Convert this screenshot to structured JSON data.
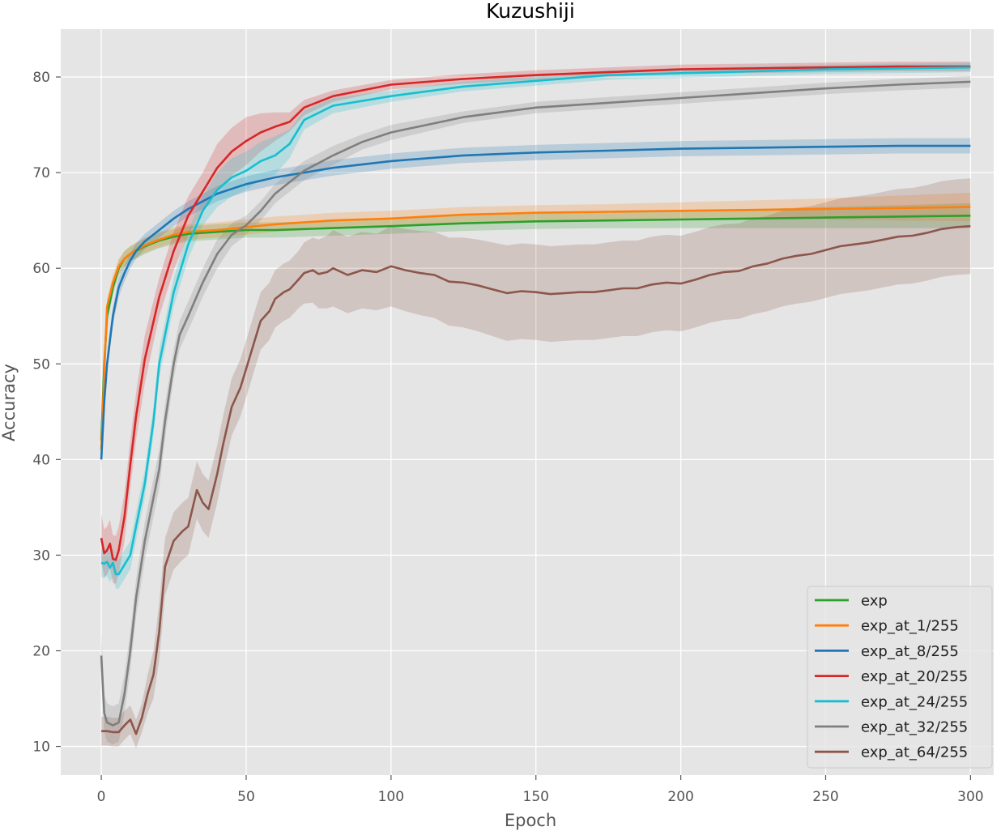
{
  "chart_data": {
    "type": "line",
    "title": "Kuzushiji",
    "xlabel": "Epoch",
    "ylabel": "Accuracy",
    "xlim": [
      -14,
      308
    ],
    "ylim": [
      7,
      85
    ],
    "xticks": [
      0,
      50,
      100,
      150,
      200,
      250,
      300
    ],
    "yticks": [
      10,
      20,
      30,
      40,
      50,
      60,
      70,
      80
    ],
    "grid": true,
    "legend_position": "lower-right",
    "bands": "shaded band around each line",
    "series": [
      {
        "name": "exp",
        "color": "#2ca02c",
        "x": [
          0,
          1,
          2,
          4,
          6,
          8,
          10,
          12,
          15,
          20,
          25,
          30,
          40,
          50,
          60,
          70,
          80,
          100,
          125,
          150,
          175,
          200,
          225,
          250,
          275,
          300
        ],
        "values": [
          42,
          50,
          55,
          58,
          60,
          61,
          61.5,
          61.8,
          62.3,
          62.9,
          63.3,
          63.6,
          63.8,
          64,
          64,
          64.1,
          64.2,
          64.4,
          64.7,
          64.9,
          65,
          65.1,
          65.2,
          65.3,
          65.4,
          65.5
        ],
        "band": [
          0.8,
          0.8,
          0.8,
          0.8,
          0.8,
          0.8,
          0.8,
          0.8,
          0.8,
          0.8,
          0.8,
          0.8,
          0.8,
          0.8,
          0.8,
          0.8,
          0.8,
          0.8,
          0.8,
          0.8,
          0.8,
          0.9,
          1,
          1.1,
          1.2,
          1.3
        ]
      },
      {
        "name": "exp_at_1/255",
        "color": "#ff7f0e",
        "x": [
          0,
          1,
          2,
          4,
          6,
          8,
          10,
          12,
          15,
          20,
          25,
          30,
          40,
          50,
          60,
          70,
          80,
          100,
          125,
          150,
          175,
          200,
          225,
          250,
          275,
          300
        ],
        "values": [
          41,
          49,
          56,
          58.5,
          60.2,
          61,
          61.5,
          61.9,
          62.4,
          63,
          63.5,
          63.8,
          64,
          64.3,
          64.6,
          64.8,
          65,
          65.2,
          65.6,
          65.8,
          65.9,
          66,
          66.1,
          66.2,
          66.3,
          66.4
        ],
        "band": [
          0.8,
          0.8,
          0.8,
          0.8,
          0.8,
          0.8,
          0.8,
          0.8,
          0.8,
          0.8,
          0.8,
          0.8,
          0.8,
          0.8,
          0.8,
          0.8,
          0.8,
          0.8,
          0.8,
          0.8,
          0.8,
          0.9,
          1,
          1.1,
          1.3,
          1.5
        ]
      },
      {
        "name": "exp_at_8/255",
        "color": "#1f77b4",
        "x": [
          0,
          1,
          2,
          4,
          6,
          8,
          10,
          12,
          15,
          20,
          25,
          30,
          40,
          50,
          60,
          70,
          80,
          100,
          125,
          150,
          175,
          200,
          225,
          250,
          275,
          300
        ],
        "values": [
          40,
          46,
          50,
          55,
          58,
          59.5,
          60.8,
          61.8,
          62.8,
          64,
          65.2,
          66.2,
          67.8,
          68.8,
          69.5,
          70,
          70.5,
          71.2,
          71.8,
          72.1,
          72.3,
          72.5,
          72.6,
          72.7,
          72.8,
          72.8
        ],
        "band": [
          1.2,
          1,
          1,
          1,
          1,
          0.9,
          0.8,
          0.8,
          0.8,
          0.8,
          0.8,
          0.8,
          0.8,
          0.8,
          0.8,
          0.8,
          0.8,
          0.8,
          0.8,
          0.8,
          0.8,
          0.8,
          0.8,
          0.8,
          0.8,
          0.8
        ]
      },
      {
        "name": "exp_at_20/255",
        "color": "#d62728",
        "x": [
          0,
          1,
          2,
          3,
          4,
          5,
          6,
          8,
          10,
          12,
          15,
          20,
          25,
          30,
          35,
          40,
          45,
          50,
          55,
          60,
          65,
          70,
          80,
          100,
          125,
          150,
          175,
          200,
          225,
          250,
          275,
          300
        ],
        "values": [
          31.8,
          30.2,
          30.5,
          31.2,
          29.6,
          29.5,
          30.5,
          34,
          39.5,
          44.5,
          50.5,
          57,
          61.8,
          65.5,
          68,
          70.5,
          72.2,
          73.3,
          74.2,
          74.8,
          75.3,
          76.8,
          78,
          79.2,
          79.8,
          80.2,
          80.5,
          80.8,
          80.9,
          81,
          81.1,
          81.1
        ],
        "band": [
          2.5,
          2.5,
          2.5,
          2.5,
          2.5,
          2.5,
          2.5,
          2.5,
          2.5,
          2.5,
          2.5,
          2,
          2,
          2,
          2,
          2.5,
          2.5,
          2.5,
          2,
          1.5,
          1,
          0.8,
          0.6,
          0.5,
          0.5,
          0.5,
          0.5,
          0.5,
          0.5,
          0.5,
          0.5,
          0.5
        ]
      },
      {
        "name": "exp_at_24/255",
        "color": "#17becf",
        "x": [
          0,
          1,
          2,
          3,
          4,
          5,
          6,
          8,
          10,
          12,
          15,
          18,
          20,
          25,
          30,
          35,
          40,
          45,
          50,
          55,
          60,
          65,
          70,
          80,
          100,
          125,
          150,
          175,
          200,
          225,
          250,
          275,
          300
        ],
        "values": [
          29.2,
          29.1,
          29.3,
          28.7,
          29.2,
          28,
          28,
          29,
          30,
          33,
          37.5,
          44,
          50,
          57.5,
          62.5,
          66,
          68.2,
          69.5,
          70.2,
          71.2,
          71.8,
          73,
          75.5,
          77,
          78,
          79,
          79.6,
          80.2,
          80.4,
          80.6,
          80.8,
          80.9,
          81
        ],
        "band": [
          1.5,
          1.5,
          1.5,
          1.5,
          1.5,
          1.5,
          1.5,
          1.5,
          1.5,
          1.5,
          1.5,
          1.5,
          1.5,
          1.5,
          1.5,
          1.5,
          1.8,
          2,
          2,
          2,
          2,
          1.5,
          1,
          0.8,
          0.6,
          0.5,
          0.5,
          0.5,
          0.5,
          0.5,
          0.5,
          0.5,
          0.5
        ]
      },
      {
        "name": "exp_at_32/255",
        "color": "#7f7f7f",
        "x": [
          0,
          1,
          2,
          4,
          6,
          8,
          10,
          12,
          15,
          18,
          20,
          22,
          25,
          27,
          30,
          35,
          40,
          45,
          50,
          55,
          60,
          65,
          70,
          80,
          90,
          100,
          125,
          150,
          175,
          200,
          225,
          250,
          275,
          300
        ],
        "values": [
          19.5,
          13.5,
          12.5,
          12.2,
          12.5,
          15.5,
          20,
          25.5,
          31.5,
          36,
          39,
          44,
          50,
          53,
          55,
          58.5,
          61.5,
          63.5,
          64.5,
          66,
          67.8,
          69,
          70.2,
          71.8,
          73.2,
          74.2,
          75.8,
          76.8,
          77.3,
          77.8,
          78.3,
          78.8,
          79.2,
          79.5
        ],
        "band": [
          2.5,
          2,
          2,
          2,
          2,
          2,
          2,
          2,
          2,
          2,
          2,
          1.8,
          1.5,
          1.5,
          1.5,
          1.5,
          1.5,
          1.2,
          1,
          1,
          1,
          1,
          1,
          1,
          0.8,
          0.8,
          0.6,
          0.6,
          0.6,
          0.6,
          0.6,
          0.6,
          0.6,
          0.6
        ]
      },
      {
        "name": "exp_at_64/255",
        "color": "#8c564b",
        "x": [
          0,
          2,
          4,
          6,
          8,
          10,
          12,
          14,
          16,
          18,
          20,
          22,
          25,
          28,
          30,
          33,
          35,
          37,
          40,
          42,
          45,
          48,
          50,
          53,
          55,
          58,
          60,
          63,
          65,
          68,
          70,
          73,
          75,
          78,
          80,
          85,
          90,
          95,
          100,
          105,
          110,
          115,
          120,
          125,
          130,
          135,
          140,
          145,
          150,
          155,
          160,
          165,
          170,
          175,
          180,
          185,
          190,
          195,
          200,
          205,
          210,
          215,
          220,
          225,
          230,
          235,
          240,
          245,
          250,
          255,
          260,
          265,
          270,
          275,
          280,
          285,
          290,
          295,
          300
        ],
        "values": [
          11.6,
          11.6,
          11.5,
          11.5,
          12.2,
          12.8,
          11.3,
          13,
          15.5,
          17.5,
          22,
          28.8,
          31.5,
          32.5,
          33,
          36.8,
          35.5,
          34.8,
          38.5,
          41.5,
          45.5,
          47.5,
          49.5,
          52.5,
          54.5,
          55.5,
          56.8,
          57.5,
          57.8,
          58.8,
          59.5,
          59.8,
          59.4,
          59.6,
          60,
          59.3,
          59.8,
          59.6,
          60.2,
          59.8,
          59.5,
          59.3,
          58.6,
          58.5,
          58.2,
          57.8,
          57.4,
          57.6,
          57.5,
          57.3,
          57.4,
          57.5,
          57.5,
          57.7,
          57.9,
          57.9,
          58.3,
          58.5,
          58.4,
          58.8,
          59.3,
          59.6,
          59.7,
          60.2,
          60.5,
          61,
          61.3,
          61.5,
          61.9,
          62.3,
          62.5,
          62.7,
          63,
          63.3,
          63.4,
          63.7,
          64.1,
          64.3,
          64.4
        ],
        "band": [
          1.5,
          1.5,
          1.5,
          1.5,
          1.5,
          1.5,
          1.5,
          1.5,
          2,
          2.5,
          3,
          3,
          3,
          3,
          3,
          3,
          3,
          3,
          3,
          3,
          3,
          3,
          3,
          3,
          3,
          3,
          3,
          3,
          3,
          3,
          3.2,
          3.4,
          3.6,
          3.8,
          4,
          4,
          4,
          4,
          4.2,
          4.3,
          4.4,
          4.5,
          4.6,
          4.7,
          4.8,
          4.9,
          5,
          5,
          5,
          5,
          5,
          5,
          5,
          5,
          5,
          5,
          5,
          5,
          5,
          5,
          5,
          5,
          5,
          5,
          5,
          5,
          5,
          5,
          5,
          5,
          5,
          5,
          5,
          5,
          5,
          5,
          5,
          5,
          5
        ]
      }
    ]
  }
}
